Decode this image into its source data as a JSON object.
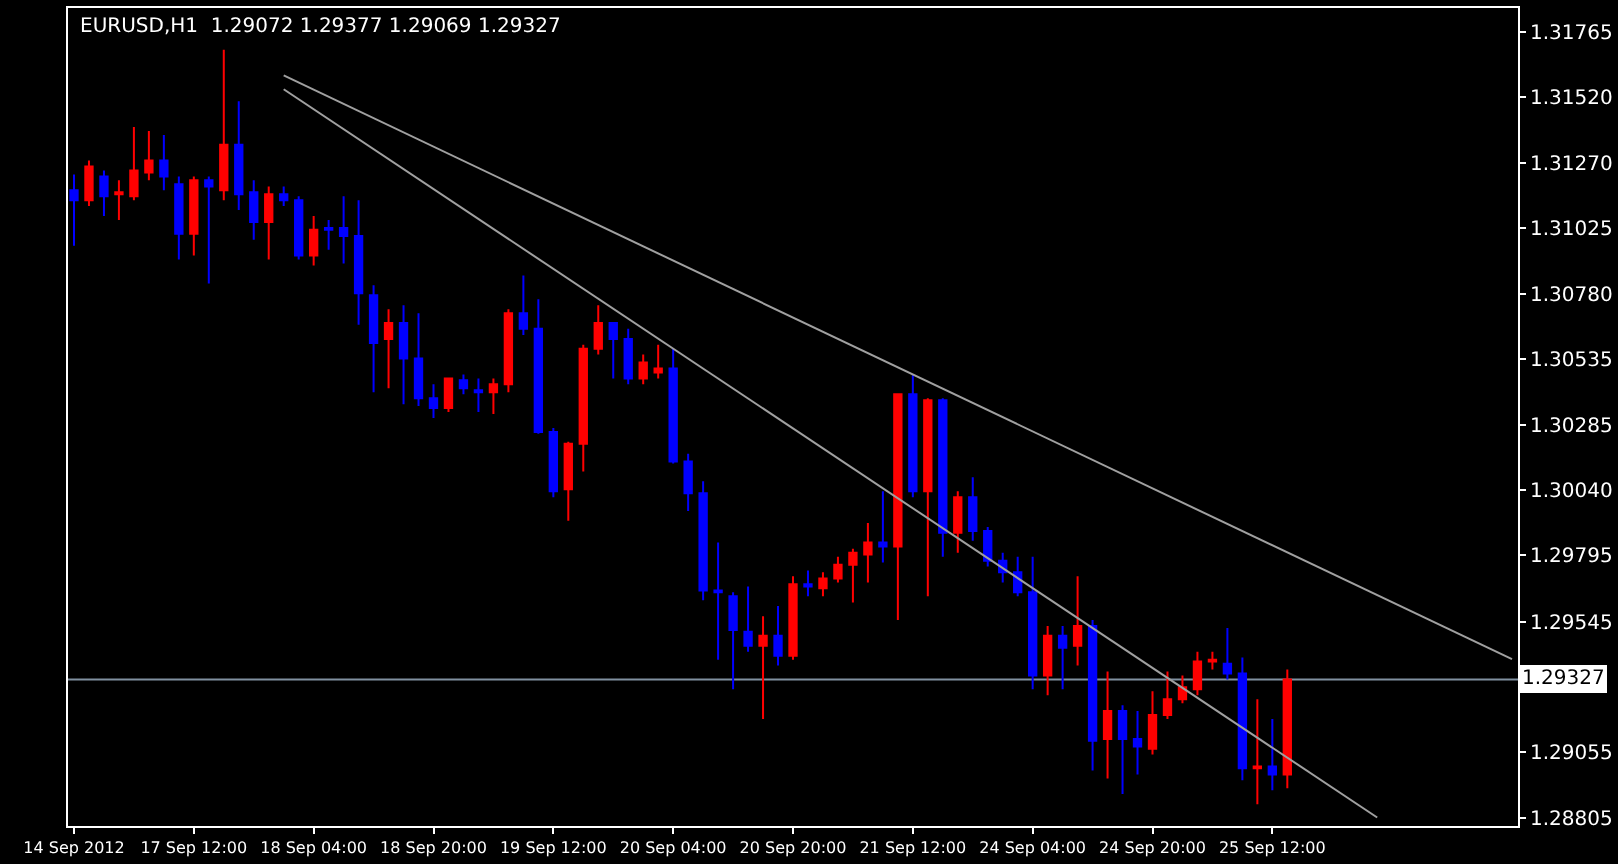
{
  "chart_data": {
    "type": "candlestick",
    "title": "EURUSD,H1  1.29072 1.29377 1.29069 1.29327",
    "categories": [
      "14 Sep 2012",
      null,
      null,
      null,
      null,
      null,
      null,
      null,
      "17 Sep 12:00",
      null,
      null,
      null,
      null,
      null,
      null,
      null,
      "18 Sep 04:00",
      null,
      null,
      null,
      null,
      null,
      null,
      null,
      "18 Sep 20:00",
      null,
      null,
      null,
      null,
      null,
      null,
      null,
      "19 Sep 12:00",
      null,
      null,
      null,
      null,
      null,
      null,
      null,
      "20 Sep 04:00",
      null,
      null,
      null,
      null,
      null,
      null,
      null,
      "20 Sep 20:00",
      null,
      null,
      null,
      null,
      null,
      null,
      null,
      "21 Sep 12:00",
      null,
      null,
      null,
      null,
      null,
      null,
      null,
      "24 Sep 04:00",
      null,
      null,
      null,
      null,
      null,
      null,
      null,
      "24 Sep 20:00",
      null,
      null,
      null,
      null,
      null,
      null,
      null,
      "25 Sep 12:00",
      null,
      null,
      null,
      null,
      null,
      null,
      null,
      null,
      null,
      null,
      null,
      null,
      null,
      null,
      null,
      null
    ],
    "ohlc": [
      [
        1.31169,
        1.31228,
        1.3096,
        1.31131
      ],
      [
        1.31131,
        1.31281,
        1.31109,
        1.31258
      ],
      [
        1.31221,
        1.31243,
        1.31072,
        1.31146
      ],
      [
        1.31154,
        1.31206,
        1.31057,
        1.31161
      ],
      [
        1.31146,
        1.31407,
        1.31131,
        1.31243
      ],
      [
        1.31236,
        1.31392,
        1.31206,
        1.31281
      ],
      [
        1.31281,
        1.31377,
        1.31169,
        1.31221
      ],
      [
        1.31191,
        1.31221,
        1.30908,
        1.31005
      ],
      [
        1.31005,
        1.31221,
        1.30923,
        1.31206
      ],
      [
        1.31206,
        1.31221,
        1.30818,
        1.31183
      ],
      [
        1.31169,
        1.31698,
        1.31131,
        1.3134
      ],
      [
        1.3134,
        1.31504,
        1.31094,
        1.31154
      ],
      [
        1.31161,
        1.31206,
        1.30982,
        1.31049
      ],
      [
        1.31049,
        1.31183,
        1.30908,
        1.31154
      ],
      [
        1.31154,
        1.31183,
        1.31109,
        1.31131
      ],
      [
        1.31131,
        1.31146,
        1.30908,
        1.30923
      ],
      [
        1.30923,
        1.31072,
        1.30885,
        1.3102
      ],
      [
        1.31027,
        1.31057,
        1.30945,
        1.3102
      ],
      [
        1.31027,
        1.31146,
        1.30893,
        1.30997
      ],
      [
        1.30997,
        1.31131,
        1.30662,
        1.30781
      ],
      [
        1.30773,
        1.30811,
        1.30408,
        1.30594
      ],
      [
        1.30609,
        1.30721,
        1.30423,
        1.30669
      ],
      [
        1.30669,
        1.30736,
        1.30363,
        1.30535
      ],
      [
        1.30535,
        1.30706,
        1.30356,
        1.30386
      ],
      [
        1.30386,
        1.30438,
        1.30311,
        1.30349
      ],
      [
        1.30349,
        1.3046,
        1.30334,
        1.3046
      ],
      [
        1.30453,
        1.30475,
        1.30401,
        1.30423
      ],
      [
        1.30416,
        1.3046,
        1.30334,
        1.30408
      ],
      [
        1.30408,
        1.3046,
        1.30326,
        1.30438
      ],
      [
        1.30438,
        1.30721,
        1.30408,
        1.30706
      ],
      [
        1.30706,
        1.30848,
        1.30624,
        1.30647
      ],
      [
        1.30647,
        1.30758,
        1.30252,
        1.30259
      ],
      [
        1.30259,
        1.30274,
        1.30013,
        1.30035
      ],
      [
        1.30043,
        1.30222,
        1.29924,
        1.30214
      ],
      [
        1.30214,
        1.30587,
        1.3011,
        1.30572
      ],
      [
        1.30572,
        1.30736,
        1.3055,
        1.30669
      ],
      [
        1.30669,
        1.30669,
        1.3046,
        1.30609
      ],
      [
        1.30609,
        1.30647,
        1.30438,
        1.3046
      ],
      [
        1.3046,
        1.3055,
        1.30438,
        1.3052
      ],
      [
        1.30483,
        1.30587,
        1.3046,
        1.30498
      ],
      [
        1.30498,
        1.30572,
        1.3014,
        1.30147
      ],
      [
        1.30147,
        1.30177,
        1.29961,
        1.30028
      ],
      [
        1.30028,
        1.30073,
        1.29625,
        1.29662
      ],
      [
        1.29662,
        1.29842,
        1.29401,
        1.29655
      ],
      [
        1.2964,
        1.29655,
        1.2929,
        1.29513
      ],
      [
        1.29506,
        1.29677,
        1.29431,
        1.29454
      ],
      [
        1.29454,
        1.29565,
        1.29178,
        1.29491
      ],
      [
        1.29491,
        1.29603,
        1.29379,
        1.29416
      ],
      [
        1.29416,
        1.29715,
        1.29401,
        1.29685
      ],
      [
        1.29685,
        1.29737,
        1.2964,
        1.29677
      ],
      [
        1.2967,
        1.2973,
        1.2964,
        1.29707
      ],
      [
        1.29707,
        1.29789,
        1.29692,
        1.29759
      ],
      [
        1.29759,
        1.29819,
        1.29617,
        1.29804
      ],
      [
        1.29797,
        1.29916,
        1.29692,
        1.29842
      ],
      [
        1.29842,
        1.30035,
        1.29767,
        1.29827
      ],
      [
        1.29827,
        1.30401,
        1.29551,
        1.30401
      ],
      [
        1.30401,
        1.30475,
        1.30013,
        1.30035
      ],
      [
        1.30035,
        1.30386,
        1.2964,
        1.30378
      ],
      [
        1.30378,
        1.30386,
        1.29789,
        1.29879
      ],
      [
        1.29879,
        1.30035,
        1.29804,
        1.30013
      ],
      [
        1.30013,
        1.30088,
        1.29849,
        1.29886
      ],
      [
        1.29886,
        1.29901,
        1.29752,
        1.29774
      ],
      [
        1.29774,
        1.29804,
        1.29692,
        1.2973
      ],
      [
        1.2973,
        1.29789,
        1.2964,
        1.29655
      ],
      [
        1.29655,
        1.29789,
        1.2929,
        1.29342
      ],
      [
        1.29342,
        1.29528,
        1.29267,
        1.29491
      ],
      [
        1.29491,
        1.29528,
        1.2929,
        1.29446
      ],
      [
        1.29454,
        1.29715,
        1.29379,
        1.29528
      ],
      [
        1.29528,
        1.29551,
        1.28984,
        1.29096
      ],
      [
        1.29103,
        1.29357,
        1.28954,
        1.29208
      ],
      [
        1.29208,
        1.2923,
        1.28895,
        1.29103
      ],
      [
        1.29103,
        1.29208,
        1.28969,
        1.29074
      ],
      [
        1.29066,
        1.29282,
        1.29044,
        1.29193
      ],
      [
        1.29193,
        1.29357,
        1.29178,
        1.29252
      ],
      [
        1.29252,
        1.29342,
        1.29237,
        1.29297
      ],
      [
        1.2929,
        1.29431,
        1.29267,
        1.29394
      ],
      [
        1.29394,
        1.29431,
        1.29364,
        1.29401
      ],
      [
        1.29386,
        1.29521,
        1.29327,
        1.29349
      ],
      [
        1.29349,
        1.29409,
        1.28947,
        1.28992
      ],
      [
        1.28992,
        1.29252,
        1.28857,
        1.28999
      ],
      [
        1.28999,
        1.29178,
        1.2891,
        1.28969
      ],
      [
        1.28969,
        1.29364,
        1.28917,
        1.29327
      ],
      null,
      null,
      null,
      null,
      null,
      null,
      null,
      null,
      null,
      null,
      null,
      null,
      null,
      null,
      null
    ],
    "colors": [
      "#0000ff",
      "#ff0000",
      "#0000ff",
      "#ff0000",
      "#ff0000",
      "#ff0000",
      "#0000ff",
      "#0000ff",
      "#ff0000",
      "#0000ff",
      "#ff0000",
      "#0000ff",
      "#0000ff",
      "#ff0000",
      "#0000ff",
      "#0000ff",
      "#ff0000",
      "#0000ff",
      "#0000ff",
      "#0000ff",
      "#0000ff",
      "#ff0000",
      "#0000ff",
      "#0000ff",
      "#0000ff",
      "#ff0000",
      "#0000ff",
      "#0000ff",
      "#ff0000",
      "#ff0000",
      "#0000ff",
      "#0000ff",
      "#0000ff",
      "#ff0000",
      "#ff0000",
      "#ff0000",
      "#0000ff",
      "#0000ff",
      "#ff0000",
      "#ff0000",
      "#0000ff",
      "#0000ff",
      "#0000ff",
      "#0000ff",
      "#0000ff",
      "#0000ff",
      "#ff0000",
      "#0000ff",
      "#ff0000",
      "#0000ff",
      "#ff0000",
      "#ff0000",
      "#ff0000",
      "#ff0000",
      "#0000ff",
      "#ff0000",
      "#0000ff",
      "#ff0000",
      "#0000ff",
      "#ff0000",
      "#0000ff",
      "#0000ff",
      "#0000ff",
      "#0000ff",
      "#0000ff",
      "#ff0000",
      "#0000ff",
      "#ff0000",
      "#0000ff",
      "#ff0000",
      "#0000ff",
      "#0000ff",
      "#ff0000",
      "#ff0000",
      "#ff0000",
      "#ff0000",
      "#ff0000",
      "#0000ff",
      "#0000ff",
      "#ff0000",
      "#0000ff",
      "#ff0000",
      null,
      null,
      null,
      null,
      null,
      null,
      null,
      null,
      null,
      null,
      null,
      null,
      null,
      null,
      null
    ],
    "series": [
      {
        "type": "line",
        "color": "#a0a0a0",
        "values": [
          null,
          null,
          null,
          null,
          null,
          null,
          null,
          null,
          null,
          null,
          null,
          null,
          null,
          null,
          1.31601,
          null,
          null,
          null,
          null,
          null,
          null,
          null,
          null,
          null,
          null,
          null,
          null,
          null,
          null,
          null,
          null,
          null,
          null,
          null,
          null,
          null,
          null,
          null,
          null,
          null,
          null,
          null,
          null,
          null,
          null,
          null,
          null,
          null,
          null,
          null,
          null,
          null,
          null,
          null,
          null,
          null,
          null,
          null,
          null,
          null,
          null,
          null,
          null,
          null,
          null,
          null,
          null,
          null,
          null,
          null,
          null,
          null,
          null,
          null,
          null,
          null,
          null,
          null,
          null,
          null,
          null,
          null,
          null,
          null,
          null,
          null,
          null,
          null,
          null,
          null,
          null,
          null,
          null,
          null,
          null,
          null,
          1.29403
        ]
      },
      {
        "type": "line",
        "color": "#a0a0a0",
        "values": [
          null,
          null,
          null,
          null,
          null,
          null,
          null,
          null,
          null,
          null,
          null,
          null,
          null,
          null,
          1.31549,
          null,
          null,
          null,
          null,
          null,
          null,
          null,
          null,
          null,
          null,
          null,
          null,
          null,
          null,
          null,
          null,
          null,
          null,
          null,
          null,
          null,
          null,
          null,
          null,
          null,
          null,
          null,
          null,
          null,
          null,
          null,
          null,
          null,
          null,
          null,
          null,
          null,
          null,
          null,
          null,
          null,
          null,
          null,
          null,
          null,
          null,
          null,
          null,
          null,
          null,
          null,
          null,
          null,
          null,
          null,
          null,
          null,
          null,
          null,
          null,
          null,
          null,
          null,
          null,
          null,
          null,
          null,
          null,
          null,
          null,
          null,
          null,
          1.28807,
          null,
          null,
          null,
          null,
          null,
          null,
          null,
          null,
          null
        ]
      }
    ],
    "ref_lines": [
      {
        "axis": "y",
        "value": 1.29327,
        "label": "1.29327",
        "color": "#8090a0"
      }
    ],
    "ylim": [
      1.28775,
      1.31855
    ],
    "yticks": [
      1.31765,
      {
        "value": 1.3152,
        "label": "1.31520"
      },
      {
        "value": 1.3127,
        "label": "1.31270"
      },
      1.31025,
      {
        "value": 1.3078,
        "label": "1.30780"
      },
      1.30535,
      1.30285,
      {
        "value": 1.3004,
        "label": "1.30040"
      },
      1.29795,
      1.29545,
      1.29055,
      1.28805
    ]
  }
}
